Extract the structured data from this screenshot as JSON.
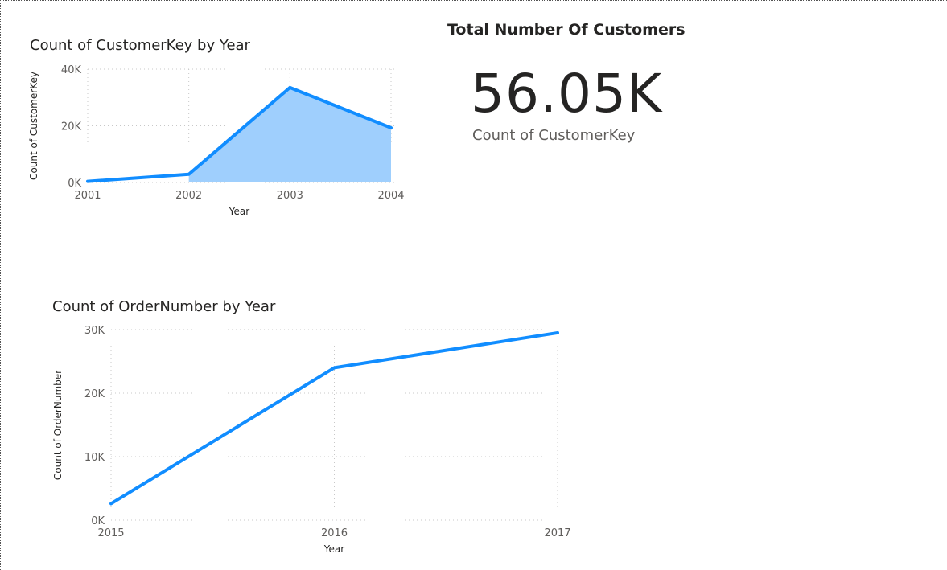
{
  "card": {
    "title": "Total Number Of Customers",
    "value": "56.05K",
    "label": "Count of CustomerKey"
  },
  "colors": {
    "accent": "#118DFF",
    "area_fill": "#9FCFFD",
    "text": "#252423",
    "muted": "#605E5C"
  },
  "chart_data": [
    {
      "type": "area",
      "title": "Count of CustomerKey by Year",
      "xlabel": "Year",
      "ylabel": "Count of CustomerKey",
      "categories": [
        "2001",
        "2002",
        "2003",
        "2004"
      ],
      "x_tick_labels": [
        "2001",
        "2002",
        "2003",
        "2004"
      ],
      "y_ticks": [
        0,
        20000,
        40000
      ],
      "y_tick_labels": [
        "0K",
        "20K",
        "40K"
      ],
      "ylim": [
        0,
        40000
      ],
      "series": [
        {
          "values": [
            400,
            2900,
            33500,
            19300
          ]
        }
      ],
      "grid": true,
      "shaded_area_from": "2002"
    },
    {
      "type": "line",
      "title": "Count of OrderNumber by Year",
      "xlabel": "Year",
      "ylabel": "Count of OrderNumber",
      "categories": [
        "2015",
        "2016",
        "2017"
      ],
      "x_tick_labels": [
        "2015",
        "2016",
        "2017"
      ],
      "y_ticks": [
        0,
        10000,
        20000,
        30000
      ],
      "y_tick_labels": [
        "0K",
        "10K",
        "20K",
        "30K"
      ],
      "ylim": [
        0,
        30000
      ],
      "series": [
        {
          "values": [
            2600,
            24000,
            29500
          ]
        }
      ],
      "grid": true
    }
  ]
}
